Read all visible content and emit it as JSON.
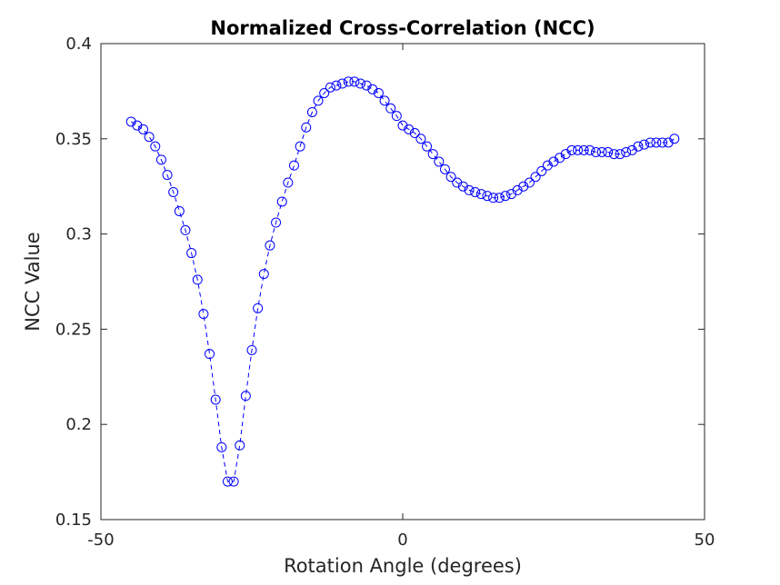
{
  "chart_data": {
    "type": "line",
    "title": "Normalized Cross-Correlation (NCC)",
    "xlabel": "Rotation Angle (degrees)",
    "ylabel": "NCC Value",
    "xlim": [
      -50,
      50
    ],
    "ylim": [
      0.15,
      0.4
    ],
    "xticks": [
      -50,
      0,
      50
    ],
    "xtick_labels": [
      "-50",
      "0",
      "50"
    ],
    "yticks": [
      0.15,
      0.2,
      0.25,
      0.3,
      0.35,
      0.4
    ],
    "ytick_labels": [
      "0.15",
      "0.2",
      "0.25",
      "0.3",
      "0.35",
      "0.4"
    ],
    "grid": false,
    "line_style": "dashed",
    "marker": "circle",
    "color": "#0000ff",
    "x": [
      -45,
      -44,
      -43,
      -42,
      -41,
      -40,
      -39,
      -38,
      -37,
      -36,
      -35,
      -34,
      -33,
      -32,
      -31,
      -30,
      -29,
      -28,
      -27,
      -26,
      -25,
      -24,
      -23,
      -22,
      -21,
      -20,
      -19,
      -18,
      -17,
      -16,
      -15,
      -14,
      -13,
      -12,
      -11,
      -10,
      -9,
      -8,
      -7,
      -6,
      -5,
      -4,
      -3,
      -2,
      -1,
      0,
      1,
      2,
      3,
      4,
      5,
      6,
      7,
      8,
      9,
      10,
      11,
      12,
      13,
      14,
      15,
      16,
      17,
      18,
      19,
      20,
      21,
      22,
      23,
      24,
      25,
      26,
      27,
      28,
      29,
      30,
      31,
      32,
      33,
      34,
      35,
      36,
      37,
      38,
      39,
      40,
      41,
      42,
      43,
      44,
      45
    ],
    "y": [
      0.359,
      0.357,
      0.355,
      0.351,
      0.346,
      0.339,
      0.331,
      0.322,
      0.312,
      0.302,
      0.29,
      0.276,
      0.258,
      0.237,
      0.213,
      0.188,
      0.17,
      0.17,
      0.189,
      0.215,
      0.239,
      0.261,
      0.279,
      0.294,
      0.306,
      0.317,
      0.327,
      0.336,
      0.346,
      0.356,
      0.364,
      0.37,
      0.374,
      0.377,
      0.378,
      0.379,
      0.38,
      0.38,
      0.379,
      0.378,
      0.376,
      0.374,
      0.37,
      0.366,
      0.362,
      0.357,
      0.355,
      0.353,
      0.35,
      0.346,
      0.342,
      0.338,
      0.334,
      0.33,
      0.327,
      0.325,
      0.323,
      0.322,
      0.321,
      0.32,
      0.319,
      0.319,
      0.32,
      0.321,
      0.323,
      0.325,
      0.327,
      0.33,
      0.333,
      0.336,
      0.338,
      0.34,
      0.342,
      0.344,
      0.344,
      0.344,
      0.344,
      0.343,
      0.343,
      0.343,
      0.342,
      0.342,
      0.343,
      0.344,
      0.346,
      0.347,
      0.348,
      0.348,
      0.348,
      0.348,
      0.35
    ]
  }
}
